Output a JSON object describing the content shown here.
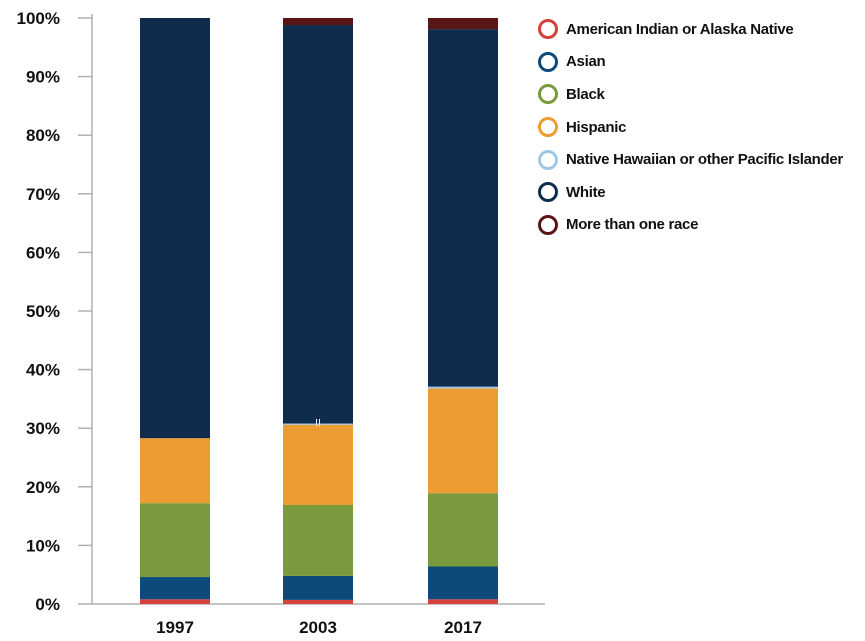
{
  "chart_data": {
    "type": "bar",
    "stacked": true,
    "categories": [
      "1997",
      "2003",
      "2017"
    ],
    "y_ticks": [
      "0%",
      "10%",
      "20%",
      "30%",
      "40%",
      "50%",
      "60%",
      "70%",
      "80%",
      "90%",
      "100%"
    ],
    "ylim": [
      0,
      100
    ],
    "legend_position": "top-right",
    "series": [
      {
        "name": "American Indian or Alaska Native",
        "color": "#d6403a",
        "values": [
          0.8,
          0.7,
          0.8
        ]
      },
      {
        "name": "Asian",
        "color": "#0d4a7c",
        "values": [
          3.8,
          4.1,
          5.6
        ]
      },
      {
        "name": "Black",
        "color": "#7a9a3e",
        "values": [
          12.6,
          12.1,
          12.5
        ]
      },
      {
        "name": "Hispanic",
        "color": "#eb9d33",
        "values": [
          11.1,
          13.7,
          17.9
        ]
      },
      {
        "name": "Native Hawaiian or other Pacific Islander",
        "color": "#9ec7e6",
        "values": [
          0,
          0.2,
          0.3
        ]
      },
      {
        "name": "White",
        "color": "#0f2c4c",
        "values": [
          71.7,
          68.0,
          61.0
        ]
      },
      {
        "name": "More than one race",
        "color": "#5a1616",
        "values": [
          0,
          1.2,
          1.9
        ]
      }
    ],
    "annotations": [
      {
        "text": "!!",
        "category": "2003",
        "y": 31
      }
    ]
  }
}
